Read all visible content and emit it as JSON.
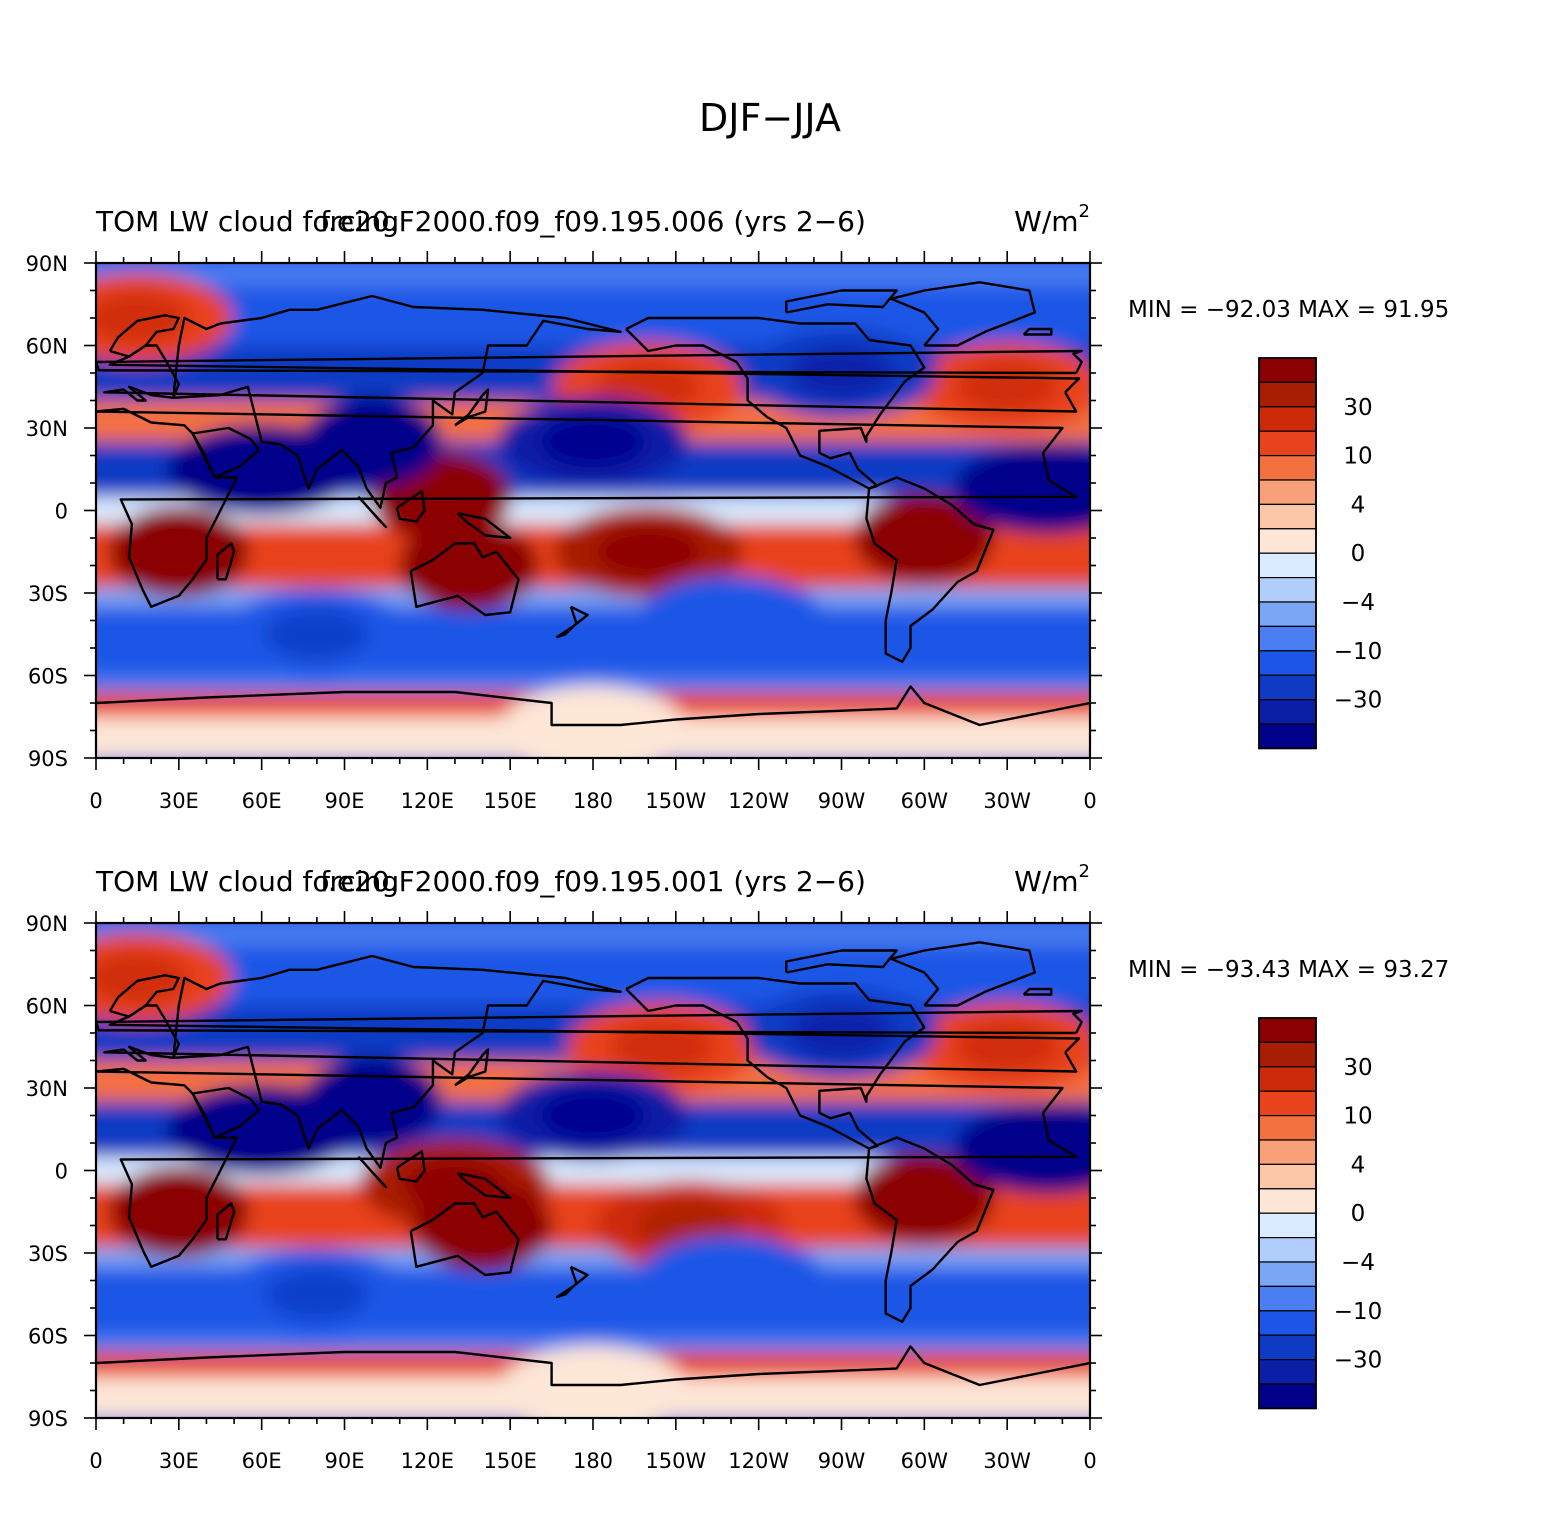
{
  "figure": {
    "title": "DJF−JJA"
  },
  "colormap": {
    "colors": [
      "#00008b",
      "#0a1fa6",
      "#0f3bc4",
      "#1c56e6",
      "#4a7ef2",
      "#7ba5f5",
      "#b0cdfb",
      "#d9ebff",
      "#fde6d7",
      "#fcc6a8",
      "#f8a07a",
      "#f3703f",
      "#e8431d",
      "#cd2a0a",
      "#a81e04",
      "#8b0000"
    ],
    "labels": [
      "−30",
      "−10",
      "−4",
      "0",
      "4",
      "10",
      "30"
    ],
    "label_boundary_index": [
      2,
      4,
      6,
      8,
      10,
      12,
      14
    ]
  },
  "panels": [
    {
      "left_title": "TOM LW cloud forcing",
      "center_title": "f.e20.F2000.f09_f09.195.006 (yrs 2−6)",
      "units": "W/m",
      "units_sup": "2",
      "stats": "MIN = −92.03  MAX =   91.95"
    },
    {
      "left_title": "TOM LW cloud forcing",
      "center_title": "f.e20.F2000.f09_f09.195.001 (yrs 2−6)",
      "units": "W/m",
      "units_sup": "2",
      "stats": "MIN = −93.43  MAX =   93.27"
    }
  ],
  "axes": {
    "lat_labels": [
      "90N",
      "60N",
      "30N",
      "0",
      "30S",
      "60S",
      "90S"
    ],
    "lon_labels": [
      "0",
      "30E",
      "60E",
      "90E",
      "120E",
      "150E",
      "180",
      "150W",
      "120W",
      "90W",
      "60W",
      "30W",
      "0"
    ]
  },
  "chart_data": [
    {
      "type": "heatmap",
      "title": "TOM LW cloud forcing",
      "subtitle": "f.e20.F2000.f09_f09.195.006 (yrs 2−6)",
      "units": "W/m^2",
      "xlim": [
        0,
        360
      ],
      "ylim": [
        -90,
        90
      ],
      "min": -92.03,
      "max": 91.95,
      "fields": [
        {
          "lon": 30,
          "lat": -15,
          "value": 60
        },
        {
          "lon": 125,
          "lat": 5,
          "value": 50
        },
        {
          "lon": 135,
          "lat": -20,
          "value": 55
        },
        {
          "lon": 200,
          "lat": -15,
          "value": 40
        },
        {
          "lon": 300,
          "lat": -10,
          "value": 60
        },
        {
          "lon": 200,
          "lat": 45,
          "value": 25
        },
        {
          "lon": 330,
          "lat": 45,
          "value": 25
        },
        {
          "lon": 15,
          "lat": 70,
          "value": 20
        },
        {
          "lon": 100,
          "lat": 25,
          "value": -50
        },
        {
          "lon": 60,
          "lat": 15,
          "value": -45
        },
        {
          "lon": 180,
          "lat": 25,
          "value": -40
        },
        {
          "lon": 270,
          "lat": 50,
          "value": -30
        },
        {
          "lon": 80,
          "lat": -45,
          "value": -20
        },
        {
          "lon": 230,
          "lat": -40,
          "value": -15
        },
        {
          "lon": 345,
          "lat": 8,
          "value": -45
        },
        {
          "lon": 180,
          "lat": -80,
          "value": 2
        }
      ]
    },
    {
      "type": "heatmap",
      "title": "TOM LW cloud forcing",
      "subtitle": "f.e20.F2000.f09_f09.195.001 (yrs 2−6)",
      "units": "W/m^2",
      "xlim": [
        0,
        360
      ],
      "ylim": [
        -90,
        90
      ],
      "min": -93.43,
      "max": 93.27,
      "fields": [
        {
          "lon": 30,
          "lat": -15,
          "value": 60
        },
        {
          "lon": 130,
          "lat": -5,
          "value": 45
        },
        {
          "lon": 140,
          "lat": -20,
          "value": 55
        },
        {
          "lon": 215,
          "lat": -20,
          "value": 30
        },
        {
          "lon": 300,
          "lat": -10,
          "value": 60
        },
        {
          "lon": 205,
          "lat": 45,
          "value": 25
        },
        {
          "lon": 330,
          "lat": 45,
          "value": 25
        },
        {
          "lon": 15,
          "lat": 70,
          "value": 20
        },
        {
          "lon": 100,
          "lat": 25,
          "value": -55
        },
        {
          "lon": 60,
          "lat": 15,
          "value": -45
        },
        {
          "lon": 180,
          "lat": 20,
          "value": -40
        },
        {
          "lon": 270,
          "lat": 50,
          "value": -30
        },
        {
          "lon": 80,
          "lat": -45,
          "value": -20
        },
        {
          "lon": 230,
          "lat": -40,
          "value": -15
        },
        {
          "lon": 345,
          "lat": 8,
          "value": -45
        },
        {
          "lon": 180,
          "lat": -80,
          "value": 2
        }
      ]
    }
  ]
}
